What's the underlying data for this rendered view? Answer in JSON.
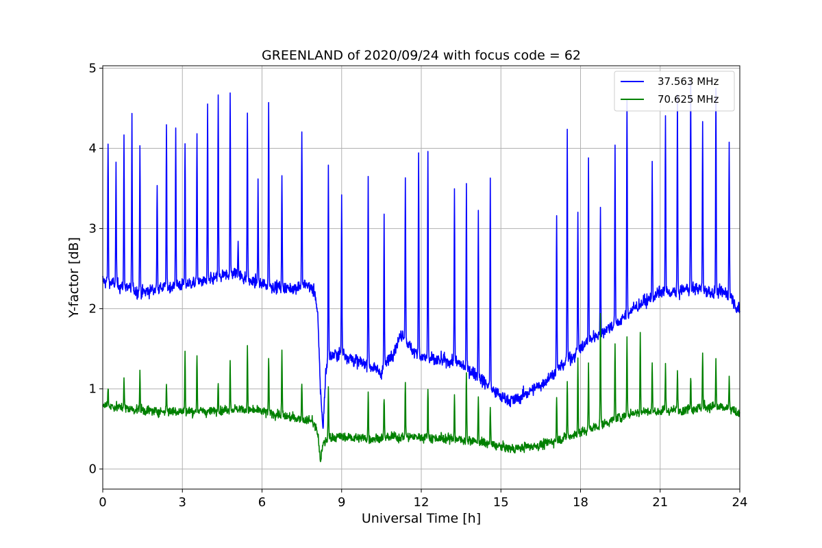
{
  "chart_data": {
    "type": "line",
    "title": "GREENLAND of 2020/09/24 with focus code = 62",
    "xlabel": "Universal Time [h]",
    "ylabel": "Y-factor [dB]",
    "xlim": [
      0,
      24
    ],
    "ylim": [
      -0.25,
      5.03
    ],
    "xticks": [
      0,
      3,
      6,
      9,
      12,
      15,
      18,
      21,
      24
    ],
    "yticks": [
      0,
      1,
      2,
      3,
      4,
      5
    ],
    "grid": true,
    "legend_position": "top-right",
    "series": [
      {
        "name": "37.563 MHz",
        "color": "#0000ff",
        "baseline": {
          "x": [
            0,
            0.5,
            1,
            1.5,
            2,
            3,
            4,
            4.5,
            5,
            5.5,
            6,
            7,
            7.7,
            8.0,
            8.1,
            8.2,
            8.3,
            8.4,
            8.5,
            9,
            9.5,
            10,
            10.5,
            11,
            11.3,
            11.6,
            12,
            12.5,
            13,
            13.5,
            14,
            14.5,
            15,
            15.5,
            16,
            16.5,
            17,
            17.5,
            18,
            18.5,
            19,
            19.5,
            20,
            20.5,
            21,
            21.5,
            22,
            22.5,
            23,
            23.5,
            23.7,
            24
          ],
          "y": [
            2.35,
            2.3,
            2.25,
            2.2,
            2.25,
            2.3,
            2.35,
            2.4,
            2.45,
            2.35,
            2.3,
            2.25,
            2.3,
            2.2,
            1.9,
            1.0,
            0.5,
            1.2,
            1.4,
            1.45,
            1.35,
            1.3,
            1.2,
            1.5,
            1.7,
            1.5,
            1.4,
            1.35,
            1.35,
            1.3,
            1.2,
            1.05,
            0.9,
            0.85,
            0.95,
            1.05,
            1.2,
            1.35,
            1.5,
            1.65,
            1.75,
            1.85,
            2.0,
            2.1,
            2.2,
            2.2,
            2.25,
            2.25,
            2.2,
            2.2,
            2.15,
            1.95
          ]
        },
        "noise": 0.16,
        "spikes": [
          {
            "x": 0.2,
            "y": 4.1
          },
          {
            "x": 0.5,
            "y": 3.8
          },
          {
            "x": 0.8,
            "y": 4.15
          },
          {
            "x": 1.1,
            "y": 4.35
          },
          {
            "x": 1.4,
            "y": 4.05
          },
          {
            "x": 2.05,
            "y": 3.6
          },
          {
            "x": 2.4,
            "y": 4.3
          },
          {
            "x": 2.75,
            "y": 4.25
          },
          {
            "x": 3.1,
            "y": 4.05
          },
          {
            "x": 3.55,
            "y": 4.25
          },
          {
            "x": 3.95,
            "y": 4.5
          },
          {
            "x": 4.35,
            "y": 4.7
          },
          {
            "x": 4.8,
            "y": 4.7
          },
          {
            "x": 5.1,
            "y": 2.9
          },
          {
            "x": 5.45,
            "y": 4.45
          },
          {
            "x": 5.85,
            "y": 3.55
          },
          {
            "x": 6.25,
            "y": 4.6
          },
          {
            "x": 6.75,
            "y": 3.65
          },
          {
            "x": 7.5,
            "y": 4.2
          },
          {
            "x": 8.5,
            "y": 3.8
          },
          {
            "x": 9.0,
            "y": 3.45
          },
          {
            "x": 10.0,
            "y": 3.7
          },
          {
            "x": 10.6,
            "y": 3.15
          },
          {
            "x": 11.4,
            "y": 3.65
          },
          {
            "x": 11.9,
            "y": 4.05
          },
          {
            "x": 12.25,
            "y": 3.95
          },
          {
            "x": 13.25,
            "y": 3.55
          },
          {
            "x": 13.7,
            "y": 3.55
          },
          {
            "x": 14.15,
            "y": 3.25
          },
          {
            "x": 14.6,
            "y": 3.6
          },
          {
            "x": 17.1,
            "y": 3.2
          },
          {
            "x": 17.5,
            "y": 4.25
          },
          {
            "x": 17.9,
            "y": 3.25
          },
          {
            "x": 18.3,
            "y": 3.85
          },
          {
            "x": 18.75,
            "y": 3.2
          },
          {
            "x": 19.3,
            "y": 4.0
          },
          {
            "x": 19.75,
            "y": 4.65
          },
          {
            "x": 20.7,
            "y": 3.75
          },
          {
            "x": 21.2,
            "y": 4.4
          },
          {
            "x": 21.65,
            "y": 4.55
          },
          {
            "x": 22.15,
            "y": 4.8
          },
          {
            "x": 22.6,
            "y": 4.3
          },
          {
            "x": 23.1,
            "y": 4.75
          },
          {
            "x": 23.6,
            "y": 4.05
          }
        ]
      },
      {
        "name": "70.625 MHz",
        "color": "#008000",
        "baseline": {
          "x": [
            0,
            1,
            2,
            3,
            4,
            5,
            6,
            7,
            7.9,
            8.1,
            8.2,
            8.3,
            8.5,
            9,
            10,
            11,
            12,
            13,
            14,
            15,
            15.5,
            16,
            16.5,
            17,
            17.5,
            18,
            18.5,
            19,
            19.5,
            20,
            20.5,
            21,
            22,
            23,
            23.5,
            24
          ],
          "y": [
            0.8,
            0.75,
            0.72,
            0.72,
            0.72,
            0.75,
            0.72,
            0.65,
            0.6,
            0.45,
            0.1,
            0.3,
            0.4,
            0.4,
            0.38,
            0.4,
            0.4,
            0.38,
            0.35,
            0.28,
            0.25,
            0.28,
            0.3,
            0.35,
            0.4,
            0.45,
            0.52,
            0.58,
            0.65,
            0.7,
            0.72,
            0.72,
            0.75,
            0.78,
            0.75,
            0.7
          ]
        },
        "noise": 0.12,
        "spikes": [
          {
            "x": 0.2,
            "y": 1.05
          },
          {
            "x": 0.8,
            "y": 1.15
          },
          {
            "x": 1.4,
            "y": 1.2
          },
          {
            "x": 2.4,
            "y": 1.1
          },
          {
            "x": 3.1,
            "y": 1.45
          },
          {
            "x": 3.55,
            "y": 1.45
          },
          {
            "x": 4.35,
            "y": 1.15
          },
          {
            "x": 4.8,
            "y": 1.35
          },
          {
            "x": 5.45,
            "y": 1.5
          },
          {
            "x": 6.25,
            "y": 1.4
          },
          {
            "x": 6.75,
            "y": 1.45
          },
          {
            "x": 7.5,
            "y": 1.1
          },
          {
            "x": 8.5,
            "y": 1.0
          },
          {
            "x": 10.0,
            "y": 0.95
          },
          {
            "x": 10.6,
            "y": 0.9
          },
          {
            "x": 11.4,
            "y": 1.1
          },
          {
            "x": 12.25,
            "y": 1.0
          },
          {
            "x": 13.25,
            "y": 0.95
          },
          {
            "x": 13.7,
            "y": 1.25
          },
          {
            "x": 14.15,
            "y": 0.9
          },
          {
            "x": 14.6,
            "y": 0.8
          },
          {
            "x": 17.1,
            "y": 0.9
          },
          {
            "x": 17.5,
            "y": 1.1
          },
          {
            "x": 17.9,
            "y": 1.4
          },
          {
            "x": 18.3,
            "y": 1.3
          },
          {
            "x": 18.75,
            "y": 1.95
          },
          {
            "x": 19.3,
            "y": 1.6
          },
          {
            "x": 19.75,
            "y": 1.65
          },
          {
            "x": 20.25,
            "y": 1.7
          },
          {
            "x": 20.7,
            "y": 1.3
          },
          {
            "x": 21.2,
            "y": 1.3
          },
          {
            "x": 21.65,
            "y": 1.25
          },
          {
            "x": 22.15,
            "y": 1.2
          },
          {
            "x": 22.6,
            "y": 1.45
          },
          {
            "x": 23.1,
            "y": 1.35
          },
          {
            "x": 23.6,
            "y": 1.15
          }
        ]
      }
    ]
  }
}
